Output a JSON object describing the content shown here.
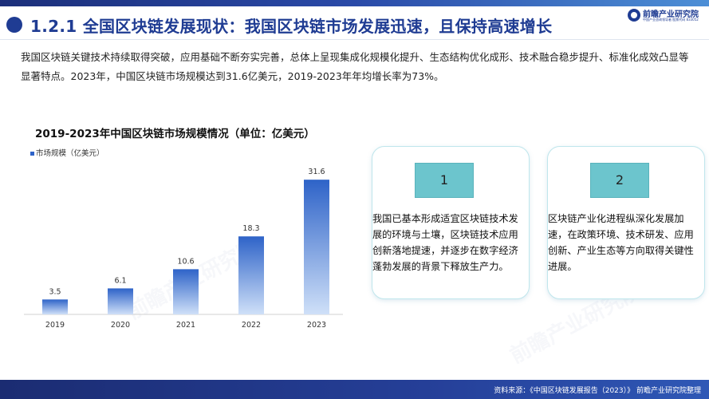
{
  "slide": {
    "title": "1.2.1 全国区块链发展现状：我国区块链市场发展迅速，且保持高速增长",
    "intro": "我国区块链关键技术持续取得突破，应用基础不断夯实完善，总体上呈现集成化规模化提升、生态结构优化成形、技术融合稳步提升、标准化成效凸显等显著特点。2023年，中国区块链市场规模达到31.6亿美元，2019-2023年年均增长率为73%。"
  },
  "logo": {
    "name": "前瞻产业研究院",
    "sub": "中国产业咨询领导者 股票代码 833052"
  },
  "watermark": "前瞻产业研究院",
  "cards": [
    {
      "number": "1",
      "text": "我国已基本形成适宜区块链技术发展的环境与土壤，区块链技术应用创新落地提速，并逐步在数字经济蓬勃发展的背景下释放生产力。"
    },
    {
      "number": "2",
      "text": "区块链产业化进程纵深化发展加速，在政策环境、技术研发、应用创新、产业生态等方向取得关键性进展。"
    }
  ],
  "footer": {
    "source": "资料来源：《中国区块链发展报告（2023）》 前瞻产业研究院整理"
  },
  "colors": {
    "title_blue": "#1f3c93",
    "bar_top": "#2e63c8",
    "bar_bottom": "#cfe0f8",
    "card_border": "#bfe6ec",
    "badge_fill": "#6cc5cd"
  },
  "chart_data": {
    "type": "bar",
    "title": "2019-2023年中国区块链市场规模情况（单位：亿美元）",
    "legend": [
      "市场规模（亿美元）"
    ],
    "legend_position": "top-left",
    "categories": [
      "2019",
      "2020",
      "2021",
      "2022",
      "2023"
    ],
    "series": [
      {
        "name": "市场规模（亿美元）",
        "values": [
          3.5,
          6.1,
          10.6,
          18.3,
          31.6
        ]
      }
    ],
    "data_labels": [
      "3.5",
      "6.1",
      "10.6",
      "18.3",
      "31.6"
    ],
    "ylim": [
      0,
      35
    ],
    "y_axis_visible": false,
    "grid": false
  }
}
